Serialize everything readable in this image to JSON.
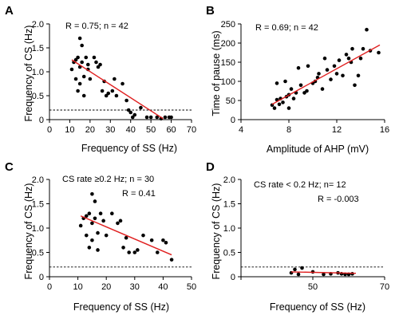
{
  "colors": {
    "fit_line": "#e02020",
    "points": "#000000"
  },
  "chart_data": [
    {
      "panel": "A",
      "type": "scatter",
      "xlabel": "Frequency of SS (Hz)",
      "ylabel": "Frequency of CS (Hz)",
      "xlim": [
        0,
        70
      ],
      "ylim": [
        0,
        2.0
      ],
      "xticks": [
        0,
        10,
        20,
        30,
        40,
        50,
        60,
        70
      ],
      "yticks": [
        0,
        0.5,
        1.0,
        1.5,
        2.0
      ],
      "xtick_labels": [
        "0",
        "10",
        "20",
        "30",
        "40",
        "50",
        "60",
        "70"
      ],
      "ytick_labels": [
        "0",
        "0.5",
        "1.0",
        "1.5",
        "2.0"
      ],
      "annotations": [
        "R = 0.75; n = 42"
      ],
      "reference_y": 0.2,
      "fit": {
        "x": [
          11,
          56
        ],
        "y": [
          1.25,
          0.02
        ]
      },
      "points": [
        [
          11,
          1.05
        ],
        [
          12,
          1.2
        ],
        [
          13,
          1.25
        ],
        [
          13,
          0.85
        ],
        [
          14,
          1.3
        ],
        [
          14,
          0.6
        ],
        [
          15,
          1.7
        ],
        [
          15,
          0.75
        ],
        [
          15,
          1.1
        ],
        [
          16,
          1.55
        ],
        [
          16,
          1.2
        ],
        [
          17,
          0.9
        ],
        [
          17,
          0.5
        ],
        [
          18,
          1.3
        ],
        [
          19,
          1.15
        ],
        [
          19,
          1.05
        ],
        [
          20,
          0.85
        ],
        [
          22,
          1.3
        ],
        [
          23,
          1.2
        ],
        [
          24,
          1.1
        ],
        [
          25,
          1.15
        ],
        [
          26,
          0.6
        ],
        [
          27,
          0.8
        ],
        [
          28,
          0.5
        ],
        [
          29,
          0.55
        ],
        [
          31,
          0.6
        ],
        [
          32,
          0.85
        ],
        [
          33,
          0.5
        ],
        [
          36,
          0.75
        ],
        [
          38,
          0.4
        ],
        [
          39,
          0.2
        ],
        [
          40,
          0.15
        ],
        [
          41,
          0.05
        ],
        [
          42,
          0.1
        ],
        [
          45,
          0.25
        ],
        [
          48,
          0.05
        ],
        [
          50,
          0.05
        ],
        [
          53,
          0.05
        ],
        [
          55,
          0.02
        ],
        [
          57,
          0.05
        ],
        [
          59,
          0.05
        ],
        [
          60,
          0.05
        ]
      ]
    },
    {
      "panel": "B",
      "type": "scatter",
      "xlabel": "Amplitude of AHP (mV)",
      "ylabel": "Time of pause (ms)",
      "xlim": [
        4,
        16
      ],
      "ylim": [
        0,
        250
      ],
      "xticks": [
        4,
        8,
        12,
        16
      ],
      "yticks": [
        0,
        50,
        100,
        150,
        200,
        250
      ],
      "xtick_labels": [
        "4",
        "8",
        "12",
        "16"
      ],
      "ytick_labels": [
        "0",
        "50",
        "100",
        "150",
        "200",
        "250"
      ],
      "annotations": [
        "R = 0.69; n = 42"
      ],
      "reference_y": null,
      "fit": {
        "x": [
          6.6,
          15.6
        ],
        "y": [
          40,
          195
        ]
      },
      "points": [
        [
          6.6,
          38
        ],
        [
          6.8,
          30
        ],
        [
          7.0,
          52
        ],
        [
          7.0,
          95
        ],
        [
          7.2,
          40
        ],
        [
          7.3,
          55
        ],
        [
          7.5,
          45
        ],
        [
          7.7,
          100
        ],
        [
          7.8,
          60
        ],
        [
          8.0,
          30
        ],
        [
          8.0,
          65
        ],
        [
          8.2,
          80
        ],
        [
          8.4,
          55
        ],
        [
          8.6,
          70
        ],
        [
          8.8,
          135
        ],
        [
          9.0,
          90
        ],
        [
          9.3,
          70
        ],
        [
          9.5,
          75
        ],
        [
          9.6,
          140
        ],
        [
          10.0,
          95
        ],
        [
          10.2,
          100
        ],
        [
          10.4,
          110
        ],
        [
          10.5,
          120
        ],
        [
          10.8,
          80
        ],
        [
          11.0,
          160
        ],
        [
          11.2,
          130
        ],
        [
          11.5,
          105
        ],
        [
          11.8,
          140
        ],
        [
          12.0,
          120
        ],
        [
          12.2,
          155
        ],
        [
          12.5,
          115
        ],
        [
          12.8,
          170
        ],
        [
          13.0,
          160
        ],
        [
          13.2,
          150
        ],
        [
          13.3,
          185
        ],
        [
          13.5,
          90
        ],
        [
          13.8,
          115
        ],
        [
          14.0,
          160
        ],
        [
          14.2,
          185
        ],
        [
          14.5,
          235
        ],
        [
          14.8,
          180
        ],
        [
          15.5,
          175
        ]
      ]
    },
    {
      "panel": "C",
      "type": "scatter",
      "xlabel": "Frequency of SS (Hz)",
      "ylabel": "Frequency of CS (Hz)",
      "xlim": [
        0,
        50
      ],
      "ylim": [
        0,
        2.0
      ],
      "xticks": [
        0,
        10,
        20,
        30,
        40,
        50
      ],
      "yticks": [
        0,
        0.5,
        1.0,
        1.5,
        2.0
      ],
      "xtick_labels": [
        "0",
        "10",
        "20",
        "30",
        "40",
        "50"
      ],
      "ytick_labels": [
        "0",
        "0.5",
        "1.0",
        "1.5",
        "2.0"
      ],
      "annotations": [
        "CS rate ≥0.2 Hz; n = 30",
        "R = 0.41"
      ],
      "reference_y": 0.2,
      "fit": {
        "x": [
          11,
          43
        ],
        "y": [
          1.25,
          0.45
        ]
      },
      "points": [
        [
          11,
          1.05
        ],
        [
          12,
          1.2
        ],
        [
          13,
          0.85
        ],
        [
          13,
          1.25
        ],
        [
          14,
          0.6
        ],
        [
          14,
          1.3
        ],
        [
          15,
          1.1
        ],
        [
          15,
          1.7
        ],
        [
          15,
          0.75
        ],
        [
          16,
          1.55
        ],
        [
          16,
          1.2
        ],
        [
          17,
          0.9
        ],
        [
          17,
          0.55
        ],
        [
          18,
          1.3
        ],
        [
          19,
          1.15
        ],
        [
          20,
          0.85
        ],
        [
          22,
          1.3
        ],
        [
          24,
          1.1
        ],
        [
          25,
          1.15
        ],
        [
          26,
          0.6
        ],
        [
          27,
          0.8
        ],
        [
          28,
          0.5
        ],
        [
          30,
          0.5
        ],
        [
          31,
          0.55
        ],
        [
          33,
          0.85
        ],
        [
          36,
          0.75
        ],
        [
          38,
          0.5
        ],
        [
          40,
          0.75
        ],
        [
          41,
          0.7
        ],
        [
          43,
          0.35
        ]
      ]
    },
    {
      "panel": "D",
      "type": "scatter",
      "xlabel": "Frequency of SS (Hz)",
      "ylabel": "Frequency of CS (Hz)",
      "xlim": [
        30,
        70
      ],
      "ylim": [
        0,
        2.0
      ],
      "xticks": [
        30,
        50,
        70
      ],
      "yticks": [
        0,
        0.5,
        1.0,
        1.5,
        2.0
      ],
      "xtick_labels": [
        "",
        "50",
        "70"
      ],
      "ytick_labels": [
        "0",
        "0.5",
        "1.0",
        "1.5",
        "2.0"
      ],
      "annotations": [
        "CS rate < 0.2 Hz; n= 12",
        "R = -0.003"
      ],
      "reference_y": 0.2,
      "fit": {
        "x": [
          44,
          62
        ],
        "y": [
          0.1,
          0.07
        ]
      },
      "points": [
        [
          44,
          0.08
        ],
        [
          45,
          0.15
        ],
        [
          46,
          0.05
        ],
        [
          47,
          0.18
        ],
        [
          50,
          0.1
        ],
        [
          53,
          0.05
        ],
        [
          55,
          0.06
        ],
        [
          57,
          0.08
        ],
        [
          58,
          0.06
        ],
        [
          59,
          0.05
        ],
        [
          60,
          0.05
        ],
        [
          61,
          0.06
        ]
      ]
    }
  ]
}
